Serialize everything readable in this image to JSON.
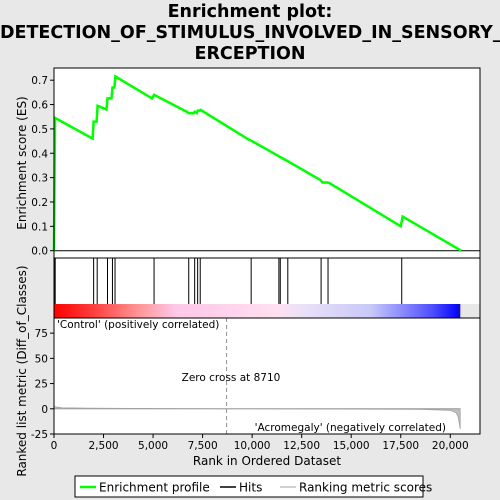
{
  "title_lines": [
    "Enrichment plot:",
    "DETECTION_OF_STIMULUS_INVOLVED_IN_SENSORY_P",
    "ERCEPTION"
  ],
  "colors": {
    "enrichment": "#00ff00",
    "hits": "#000000",
    "ranking": "#c0c0c0",
    "positive_red": "#ff0000",
    "negative_blue": "#0000ff"
  },
  "chart_data": {
    "type": "line",
    "x_range": [
      0,
      21500
    ],
    "x_ticks": [
      0,
      2500,
      5000,
      7500,
      10000,
      12500,
      15000,
      17500,
      20000
    ],
    "x_tick_labels": [
      "0",
      "2,500",
      "5,000",
      "7,500",
      "10,000",
      "12,500",
      "15,000",
      "17,500",
      "20,000"
    ],
    "xlabel": "Rank in Ordered Dataset",
    "es_panel": {
      "ylabel": "Enrichment score (ES)",
      "ylim": [
        -0.03,
        0.75
      ],
      "y_ticks": [
        0.0,
        0.1,
        0.2,
        0.3,
        0.4,
        0.5,
        0.6,
        0.7
      ],
      "y_tick_labels": [
        "0.0",
        "0.1",
        "0.2",
        "0.3",
        "0.4",
        "0.5",
        "0.6",
        "0.7"
      ],
      "series": [
        {
          "x": [
            0,
            50,
            1950,
            2000,
            2150,
            2200,
            2650,
            2700,
            2900,
            2950,
            3050,
            3100,
            4950,
            5050,
            6700,
            6800,
            7050,
            7100,
            7200,
            7250,
            7350,
            7400,
            9850,
            9950,
            11300,
            11400,
            11750,
            11850,
            13450,
            13550,
            13800,
            13900,
            17500,
            17600,
            20550
          ],
          "y": [
            0.0,
            0.545,
            0.46,
            0.53,
            0.53,
            0.595,
            0.58,
            0.625,
            0.625,
            0.67,
            0.67,
            0.715,
            0.625,
            0.64,
            0.57,
            0.565,
            0.565,
            0.57,
            0.565,
            0.575,
            0.575,
            0.578,
            0.455,
            0.452,
            0.39,
            0.385,
            0.37,
            0.365,
            0.29,
            0.28,
            0.28,
            0.278,
            0.1,
            0.14,
            0.0
          ]
        }
      ]
    },
    "hits": [
      20,
      60,
      2000,
      2180,
      2700,
      2950,
      3080,
      5050,
      6800,
      7100,
      7250,
      7380,
      9950,
      11350,
      11420,
      11800,
      13480,
      13830,
      17550
    ],
    "ranking_panel": {
      "ylabel": "Ranked list metric (Diff_of_Classes)",
      "ylim": [
        -25,
        90
      ],
      "y_ticks": [
        -25,
        0,
        25,
        50,
        75
      ],
      "y_tick_labels": [
        "-25",
        "0",
        "25",
        "50",
        "75"
      ],
      "zero_cross": 8710,
      "zero_cross_label": "Zero cross at 8710",
      "positive_label": "'Control' (positively correlated)",
      "negative_label": "'Acromegaly' (negatively correlated)",
      "series": [
        {
          "x": [
            0,
            40,
            400,
            1700,
            8710,
            18500,
            20000,
            20300,
            20400,
            20500
          ],
          "y": [
            3.0,
            2.0,
            1.0,
            0.6,
            0.0,
            -0.6,
            -1.5,
            -4.0,
            -8.0,
            -20.0
          ]
        }
      ]
    },
    "legend": {
      "placement": "bottom",
      "entries": [
        "Enrichment profile",
        "Hits",
        "Ranking metric scores"
      ]
    }
  }
}
